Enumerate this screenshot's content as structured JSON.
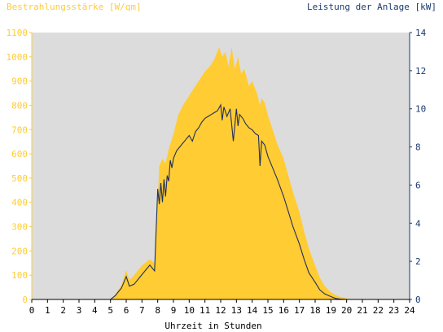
{
  "colors": {
    "plot_background": "#dcdcdc",
    "irradiance_fill": "#ffcc33",
    "power_line": "#1f2f5e",
    "left_axis_text": "#ffcc33",
    "right_axis_text": "#1a3a6e",
    "x_axis_text": "#000000"
  },
  "chart_data": {
    "type": "area",
    "title_left": "Bestrahlungsstärke [W/qm]",
    "title_right": "Leistung der Anlage [kW]",
    "xlabel": "Uhrzeit in Stunden",
    "xlim": [
      0,
      24
    ],
    "x_ticks": [
      "0",
      "1",
      "2",
      "3",
      "4",
      "5",
      "6",
      "7",
      "8",
      "9",
      "10",
      "11",
      "12",
      "13",
      "14",
      "15",
      "16",
      "17",
      "18",
      "19",
      "20",
      "21",
      "22",
      "23",
      "24"
    ],
    "y_left": {
      "ylim": [
        0,
        1100
      ],
      "ticks": [
        "0",
        "100",
        "200",
        "300",
        "400",
        "500",
        "600",
        "700",
        "800",
        "900",
        "1000",
        "1100"
      ]
    },
    "y_right": {
      "ylim": [
        0,
        14
      ],
      "ticks": [
        "0",
        "2",
        "4",
        "6",
        "8",
        "10",
        "12",
        "14"
      ]
    },
    "grid": false,
    "series": [
      {
        "name": "Bestrahlungsstärke",
        "axis": "left",
        "style": "area",
        "x": [
          0,
          5,
          5.3,
          5.7,
          6,
          6.2,
          6.5,
          7,
          7.5,
          7.8,
          8,
          8.1,
          8.3,
          8.5,
          8.7,
          9,
          9.3,
          9.6,
          10,
          10.3,
          10.6,
          11,
          11.3,
          11.6,
          11.9,
          12.1,
          12.3,
          12.5,
          12.7,
          12.9,
          13.1,
          13.3,
          13.5,
          13.8,
          14,
          14.3,
          14.5,
          14.6,
          14.8,
          15,
          15.3,
          15.6,
          16,
          16.3,
          16.6,
          17,
          17.3,
          17.6,
          18,
          18.3,
          18.6,
          19,
          19.3,
          19.6,
          20,
          20.3,
          20.6,
          21,
          24
        ],
        "values": [
          0,
          0,
          20,
          60,
          120,
          80,
          100,
          140,
          165,
          150,
          400,
          550,
          580,
          560,
          620,
          680,
          760,
          800,
          840,
          870,
          900,
          940,
          960,
          990,
          1040,
          1000,
          1020,
          960,
          1040,
          950,
          1000,
          930,
          950,
          880,
          900,
          850,
          800,
          830,
          810,
          760,
          700,
          640,
          580,
          510,
          440,
          360,
          280,
          210,
          140,
          90,
          55,
          30,
          18,
          10,
          4,
          1,
          0,
          0,
          0
        ]
      },
      {
        "name": "Leistung der Anlage",
        "axis": "right",
        "style": "line",
        "x": [
          0,
          5,
          5.3,
          5.7,
          6,
          6.2,
          6.5,
          7,
          7.5,
          7.8,
          8,
          8.1,
          8.2,
          8.3,
          8.4,
          8.5,
          8.6,
          8.7,
          8.8,
          8.9,
          9,
          9.2,
          9.4,
          9.6,
          9.8,
          10,
          10.2,
          10.4,
          10.6,
          10.8,
          11,
          11.2,
          11.4,
          11.6,
          11.8,
          12,
          12.1,
          12.2,
          12.4,
          12.6,
          12.8,
          13,
          13.1,
          13.2,
          13.4,
          13.6,
          13.8,
          14,
          14.2,
          14.4,
          14.5,
          14.6,
          14.8,
          15,
          15.3,
          15.6,
          16,
          16.3,
          16.6,
          17,
          17.3,
          17.6,
          18,
          18.3,
          18.6,
          19,
          19.3,
          19.6,
          20,
          20.3,
          24
        ],
        "values": [
          0,
          0,
          0.2,
          0.6,
          1.2,
          0.7,
          0.8,
          1.3,
          1.8,
          1.5,
          5.8,
          5.0,
          6.1,
          5.1,
          6.3,
          5.4,
          6.5,
          6.2,
          7.3,
          6.9,
          7.4,
          7.8,
          8.0,
          8.2,
          8.4,
          8.6,
          8.3,
          8.8,
          9.0,
          9.3,
          9.5,
          9.6,
          9.7,
          9.8,
          9.9,
          10.2,
          9.4,
          10.1,
          9.6,
          10.0,
          8.3,
          10.0,
          9.1,
          9.7,
          9.5,
          9.2,
          9.0,
          8.9,
          8.7,
          8.6,
          7.0,
          8.3,
          8.1,
          7.5,
          6.9,
          6.3,
          5.4,
          4.6,
          3.8,
          2.9,
          2.1,
          1.4,
          0.9,
          0.5,
          0.3,
          0.15,
          0.05,
          0.02,
          0,
          0,
          0
        ]
      }
    ]
  }
}
